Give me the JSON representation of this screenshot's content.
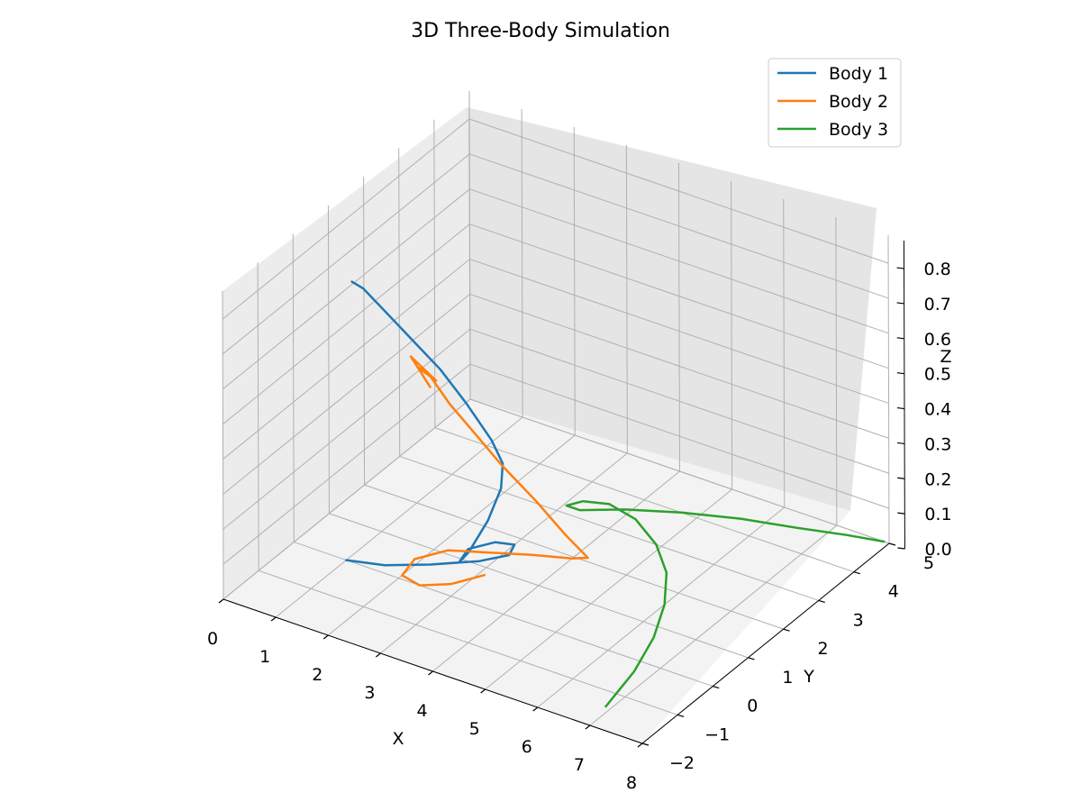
{
  "chart_data": {
    "type": "line",
    "title": "3D Three-Body Simulation",
    "xlabel": "X",
    "ylabel": "Y",
    "zlabel": "Z",
    "xlim": [
      0,
      8
    ],
    "ylim": [
      -2,
      5
    ],
    "zlim": [
      0,
      0.85
    ],
    "x_ticks": [
      "0",
      "1",
      "2",
      "3",
      "4",
      "5",
      "6",
      "7",
      "8"
    ],
    "y_ticks": [
      "−2",
      "−1",
      "0",
      "1",
      "2",
      "3",
      "4",
      "5"
    ],
    "z_ticks": [
      "0.0",
      "0.1",
      "0.2",
      "0.3",
      "0.4",
      "0.5",
      "0.6",
      "0.7",
      "0.8"
    ],
    "grid": true,
    "legend_position": "top-right",
    "series": [
      {
        "name": "Body 1",
        "color": "#1f77b4",
        "points": [
          [
            1.0,
            0.0,
            0.0
          ],
          [
            1.6,
            0.2,
            0.0
          ],
          [
            2.2,
            0.6,
            0.0
          ],
          [
            2.8,
            1.1,
            0.0
          ],
          [
            3.1,
            1.5,
            0.0
          ],
          [
            3.0,
            1.8,
            0.0
          ],
          [
            2.7,
            1.7,
            0.0
          ],
          [
            2.45,
            1.3,
            0.0
          ],
          [
            2.55,
            0.9,
            0.0
          ],
          [
            2.8,
            0.8,
            0.05
          ],
          [
            3.0,
            1.05,
            0.13
          ],
          [
            3.05,
            1.35,
            0.2
          ],
          [
            2.95,
            1.55,
            0.25
          ],
          [
            2.7,
            1.6,
            0.3
          ],
          [
            2.3,
            1.5,
            0.39
          ],
          [
            1.9,
            1.35,
            0.48
          ],
          [
            1.5,
            1.15,
            0.56
          ],
          [
            1.1,
            0.95,
            0.64
          ],
          [
            0.8,
            0.8,
            0.7
          ],
          [
            0.65,
            0.7,
            0.72
          ]
        ]
      },
      {
        "name": "Body 2",
        "color": "#ff7f0e",
        "points": [
          [
            3.1,
            0.8,
            0.0
          ],
          [
            2.8,
            0.3,
            0.0
          ],
          [
            2.4,
            0.0,
            0.0
          ],
          [
            2.0,
            0.1,
            0.0
          ],
          [
            1.9,
            0.6,
            0.0
          ],
          [
            2.2,
            1.1,
            0.0
          ],
          [
            2.8,
            1.4,
            0.0
          ],
          [
            3.4,
            1.7,
            0.0
          ],
          [
            4.0,
            1.95,
            0.0
          ],
          [
            4.2,
            2.1,
            0.0
          ],
          [
            3.8,
            2.05,
            0.05
          ],
          [
            3.3,
            1.95,
            0.13
          ],
          [
            2.8,
            1.75,
            0.22
          ],
          [
            2.4,
            1.6,
            0.3
          ],
          [
            2.0,
            1.45,
            0.38
          ],
          [
            1.65,
            1.35,
            0.46
          ],
          [
            1.5,
            1.3,
            0.47
          ],
          [
            1.85,
            1.3,
            0.45
          ],
          [
            1.4,
            1.25,
            0.5
          ],
          [
            1.7,
            1.35,
            0.42
          ]
        ]
      },
      {
        "name": "Body 3",
        "color": "#2ca02c",
        "points": [
          [
            6.9,
            -1.4,
            0.0
          ],
          [
            6.7,
            -0.3,
            0.0
          ],
          [
            6.4,
            0.7,
            0.0
          ],
          [
            6.0,
            1.6,
            0.0
          ],
          [
            5.5,
            2.4,
            0.0
          ],
          [
            4.9,
            3.0,
            0.0
          ],
          [
            4.2,
            3.45,
            0.0
          ],
          [
            3.6,
            3.6,
            0.0
          ],
          [
            3.2,
            3.45,
            0.0
          ],
          [
            3.05,
            3.2,
            0.0
          ],
          [
            3.3,
            3.2,
            0.0
          ],
          [
            3.9,
            3.6,
            0.0
          ],
          [
            4.7,
            4.0,
            0.0
          ],
          [
            5.6,
            4.35,
            0.0
          ],
          [
            6.5,
            4.6,
            0.0
          ],
          [
            7.3,
            4.85,
            0.0
          ],
          [
            7.9,
            5.0,
            0.0
          ]
        ]
      }
    ]
  }
}
